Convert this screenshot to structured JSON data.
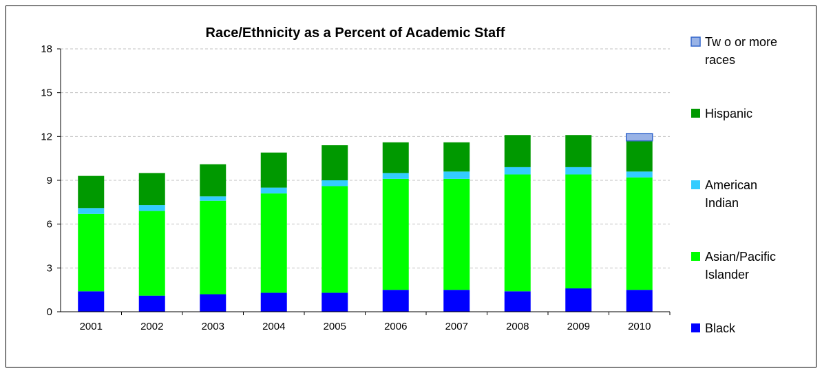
{
  "chart_data": {
    "type": "bar",
    "stacked": true,
    "title": "Race/Ethnicity as a Percent of Academic Staff",
    "xlabel": "",
    "ylabel": "",
    "ylim": [
      0,
      18
    ],
    "yticks": [
      "0",
      "3",
      "6",
      "9",
      "12",
      "15",
      "18"
    ],
    "grid": true,
    "legend_position": "right",
    "categories": [
      "2001",
      "2002",
      "2003",
      "2004",
      "2005",
      "2006",
      "2007",
      "2008",
      "2009",
      "2010"
    ],
    "series": [
      {
        "name": "Black",
        "color": "#0000ff",
        "values": [
          1.4,
          1.1,
          1.2,
          1.3,
          1.3,
          1.5,
          1.5,
          1.4,
          1.6,
          1.5
        ]
      },
      {
        "name": "Asian/Pacific Islander",
        "color": "#00ff00",
        "values": [
          5.3,
          5.8,
          6.4,
          6.8,
          7.3,
          7.6,
          7.6,
          8.0,
          7.8,
          7.7
        ]
      },
      {
        "name": "American Indian",
        "color": "#33ccff",
        "values": [
          0.4,
          0.4,
          0.3,
          0.4,
          0.4,
          0.4,
          0.5,
          0.5,
          0.5,
          0.4
        ]
      },
      {
        "name": "Hispanic",
        "color": "#009900",
        "values": [
          2.2,
          2.2,
          2.2,
          2.4,
          2.4,
          2.1,
          2.0,
          2.2,
          2.2,
          2.1
        ]
      },
      {
        "name": "Two or more races",
        "color": "#99b3e6",
        "values": [
          0,
          0,
          0,
          0,
          0,
          0,
          0,
          0,
          0,
          0.5
        ]
      }
    ],
    "legend": [
      {
        "series": "Two or more races",
        "lines": [
          "Tw o or more",
          "races"
        ],
        "color": "#99b3e6",
        "outline": "#3366cc"
      },
      {
        "series": "Hispanic",
        "lines": [
          "Hispanic"
        ],
        "color": "#009900",
        "outline": "none"
      },
      {
        "series": "American Indian",
        "lines": [
          "American",
          "Indian"
        ],
        "color": "#33ccff",
        "outline": "none"
      },
      {
        "series": "Asian/Pacific Islander",
        "lines": [
          "Asian/Pacific",
          "Islander"
        ],
        "color": "#00ff00",
        "outline": "none"
      },
      {
        "series": "Black",
        "lines": [
          "Black"
        ],
        "color": "#0000ff",
        "outline": "none"
      }
    ]
  }
}
